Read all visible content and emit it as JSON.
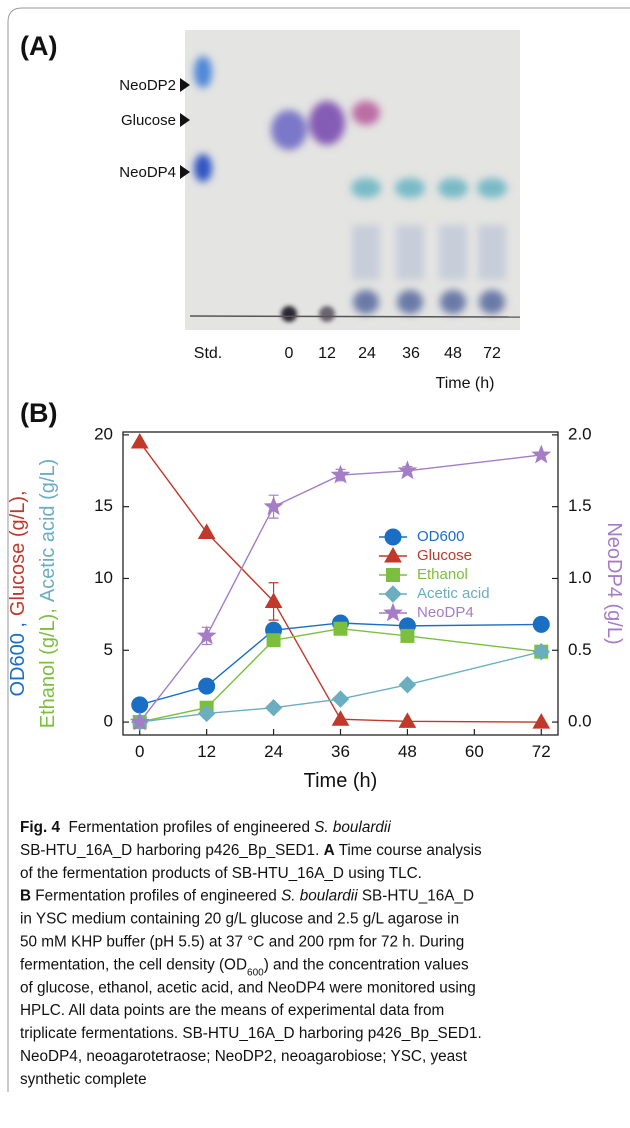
{
  "panel_a": {
    "label": "(A)",
    "markers": [
      "NeoDP2",
      "Glucose",
      "NeoDP4"
    ],
    "lanes": [
      "Std.",
      "0",
      "12",
      "24",
      "36",
      "48",
      "72"
    ],
    "xlabel": "Time (h)"
  },
  "chart_data": {
    "type": "line",
    "panel_label": "(B)",
    "xlabel": "Time (h)",
    "ylabel_lines": [
      [
        {
          "text": "OD600 ,",
          "color": "#1a6fc4"
        },
        {
          "text": "Glucose (g/L),",
          "color": "#c0392b"
        }
      ],
      [
        {
          "text": "Ethanol (g/L),",
          "color": "#7cbf3f"
        },
        {
          "text": "Acetic acid (g/L)",
          "color": "#6aaec0"
        }
      ]
    ],
    "y2label": "NeoDP4 (g/L)",
    "y2label_color": "#a57cc6",
    "x": [
      0,
      12,
      24,
      36,
      48,
      72
    ],
    "xlim": [
      -3,
      75
    ],
    "xticks": [
      0,
      12,
      24,
      36,
      48,
      60,
      72
    ],
    "ylim": [
      -0.9,
      20.2
    ],
    "yticks": [
      0,
      5,
      10,
      15,
      20
    ],
    "y2lim": [
      -0.09,
      2.02
    ],
    "y2ticks": [
      {
        "value": 0,
        "label": "0.0"
      },
      {
        "value": 0.5,
        "label": "0.5"
      },
      {
        "value": 1,
        "label": "1.0"
      },
      {
        "value": 1.5,
        "label": "1.5"
      },
      {
        "value": 2,
        "label": "2.0"
      }
    ],
    "legend": "upper right",
    "series": [
      {
        "name": "OD600",
        "color": "#1a6fc4",
        "marker": "circle",
        "values": [
          1.2,
          2.5,
          6.4,
          6.9,
          6.7,
          6.8
        ]
      },
      {
        "name": "Glucose",
        "color": "#c0392b",
        "marker": "triangle",
        "values": [
          19.5,
          13.2,
          8.4,
          0.2,
          0.05,
          0
        ],
        "errors": [
          null,
          null,
          1.3,
          null,
          null,
          null
        ]
      },
      {
        "name": "Ethanol",
        "color": "#7cbf3f",
        "marker": "square",
        "values": [
          0,
          1.0,
          5.7,
          6.5,
          6.0,
          4.9
        ]
      },
      {
        "name": "Acetic acid",
        "color": "#6aaec0",
        "marker": "diamond",
        "values": [
          0,
          0.6,
          1.0,
          1.6,
          2.6,
          4.9
        ]
      },
      {
        "name": "NeoDP4",
        "color": "#a57cc6",
        "marker": "star",
        "axis": "y2",
        "values": [
          0,
          0.6,
          1.5,
          1.72,
          1.75,
          1.86
        ],
        "errors": [
          null,
          0.06,
          0.08,
          0.04,
          0.03,
          null
        ]
      }
    ]
  },
  "caption": [
    [
      {
        "text": "Fig. 4",
        "style": "bold"
      },
      "  Fermentation profiles of engineered ",
      {
        "text": "S. boulardii",
        "style": "italic"
      }
    ],
    [
      "SB-HTU_16A_D harboring p426_Bp_SED1. ",
      {
        "text": "A",
        "style": "bold"
      },
      " Time course analysis"
    ],
    [
      "of the fermentation products of SB-HTU_16A_D using TLC."
    ],
    [
      {
        "text": "B",
        "style": "bold"
      },
      " Fermentation profiles of engineered ",
      {
        "text": "S. boulardii",
        "style": "italic"
      },
      " SB-HTU_16A_D"
    ],
    [
      "in YSC medium containing 20 g/L glucose and 2.5 g/L agarose in"
    ],
    [
      "50 mM KHP buffer (pH 5.5) at 37 °C and 200 rpm for 72 h. During"
    ],
    [
      "fermentation, the cell density (OD",
      {
        "text": "600",
        "style": "sub"
      },
      ") and the concentration values"
    ],
    [
      "of glucose, ethanol, acetic acid, and NeoDP4 were monitored using"
    ],
    [
      "HPLC. All data points are the means of experimental data from"
    ],
    [
      "triplicate fermentations. SB-HTU_16A_D harboring p426_Bp_SED1."
    ],
    [
      "NeoDP4, neoagarotetraose; NeoDP2, neoagarobiose; YSC, yeast"
    ],
    [
      "synthetic complete"
    ]
  ]
}
